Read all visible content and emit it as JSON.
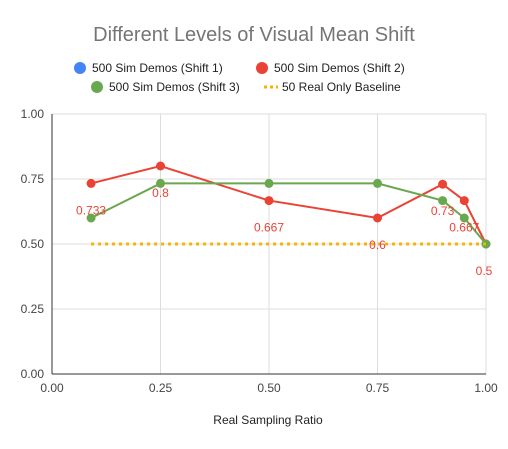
{
  "chart_data": {
    "type": "line",
    "title": "Different Levels of Visual Mean Shift",
    "xlabel": "Real Sampling Ratio",
    "ylabel": "",
    "xlim": [
      0,
      1
    ],
    "ylim": [
      0,
      1
    ],
    "x_ticks": [
      "0.00",
      "0.25",
      "0.50",
      "0.75",
      "1.00"
    ],
    "y_ticks": [
      "0.00",
      "0.25",
      "0.50",
      "0.75",
      "1.00"
    ],
    "grid": true,
    "legend_position": "top",
    "series": [
      {
        "name": "500 Sim Demos (Shift 1)",
        "color": "#4285f4",
        "style": "solid",
        "points": []
      },
      {
        "name": "500 Sim Demos (Shift 2)",
        "color": "#ea4335",
        "style": "solid",
        "points": [
          {
            "x": 0.09,
            "y": 0.733,
            "label": "0.733"
          },
          {
            "x": 0.25,
            "y": 0.8,
            "label": "0.8"
          },
          {
            "x": 0.5,
            "y": 0.667,
            "label": "0.667"
          },
          {
            "x": 0.75,
            "y": 0.6,
            "label": "0.6"
          },
          {
            "x": 0.9,
            "y": 0.73,
            "label": "0.73"
          },
          {
            "x": 0.95,
            "y": 0.667,
            "label": "0.667"
          },
          {
            "x": 1.0,
            "y": 0.5,
            "label": "0.5"
          }
        ]
      },
      {
        "name": "500 Sim Demos (Shift 3)",
        "color": "#6aa84f",
        "style": "solid",
        "points": [
          {
            "x": 0.09,
            "y": 0.6
          },
          {
            "x": 0.25,
            "y": 0.733
          },
          {
            "x": 0.5,
            "y": 0.733
          },
          {
            "x": 0.75,
            "y": 0.733
          },
          {
            "x": 0.9,
            "y": 0.667
          },
          {
            "x": 0.95,
            "y": 0.6
          },
          {
            "x": 1.0,
            "y": 0.5
          }
        ]
      },
      {
        "name": "50 Real Only Baseline",
        "color": "#f4b400",
        "style": "dotted",
        "points": [
          {
            "x": 0.09,
            "y": 0.5
          },
          {
            "x": 1.0,
            "y": 0.5
          }
        ]
      }
    ]
  }
}
